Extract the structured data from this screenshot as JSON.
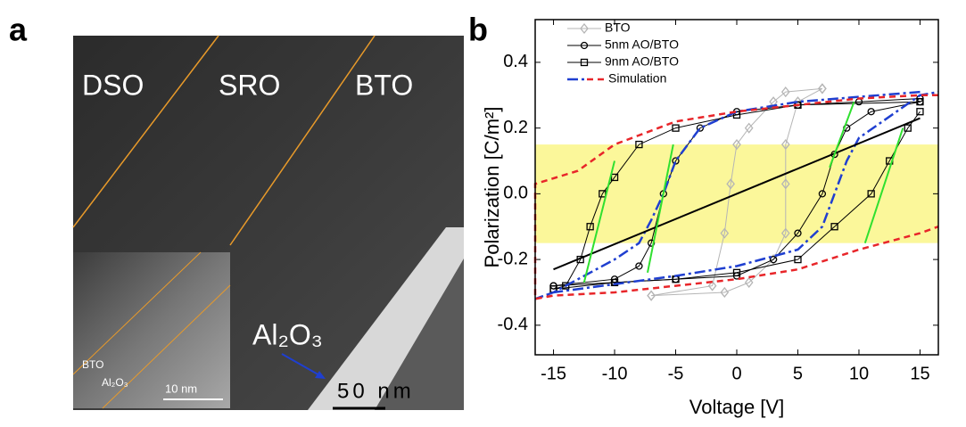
{
  "panel_a": {
    "label": "a",
    "regions": [
      "DSO",
      "SRO",
      "BTO"
    ],
    "layer": "Al₂O₃",
    "scale_bar": "50 nm",
    "inset": {
      "top_layer": "BTO",
      "bottom_layer": "Al₂O₃",
      "scale_bar": "10 nm"
    }
  },
  "chart_data": {
    "type": "line",
    "panel_label": "b",
    "xlabel": "Voltage [V]",
    "ylabel": "Polarization [C/m²]",
    "xlim": [
      -16.5,
      16.5
    ],
    "ylim": [
      -0.49,
      0.53
    ],
    "xticks": [
      -15,
      -10,
      -5,
      0,
      5,
      10,
      15
    ],
    "yticks": [
      {
        "value": -0.4,
        "label": "-0.4"
      },
      {
        "value": -0.2,
        "label": "-0.2"
      },
      {
        "value": 0,
        "label": "0.0"
      },
      {
        "value": 0.2,
        "label": "0.2"
      },
      {
        "value": 0.4,
        "label": "0.4"
      }
    ],
    "band": [
      -0.15,
      0.15
    ],
    "band_color": "#fbf79a",
    "series": [
      {
        "name": "BTO",
        "color": "#b5b5b5",
        "marker": "diamond",
        "x": [
          7,
          4,
          3,
          1,
          0,
          -0.5,
          -1,
          -2,
          -7,
          -7,
          -1,
          1,
          3,
          4,
          4,
          4,
          5,
          7
        ],
        "values": [
          0.32,
          0.31,
          0.28,
          0.2,
          0.15,
          0.03,
          -0.12,
          -0.28,
          -0.31,
          -0.31,
          -0.3,
          -0.27,
          -0.2,
          -0.12,
          0.03,
          0.15,
          0.28,
          0.32
        ]
      },
      {
        "name": "5nm AO/BTO",
        "color": "#000000",
        "marker": "circle",
        "x": [
          15,
          10,
          5,
          0,
          -3,
          -5,
          -6,
          -7,
          -8,
          -10,
          -15,
          -15,
          -10,
          -5,
          0,
          3,
          5,
          7,
          8,
          9,
          11,
          15
        ],
        "values": [
          0.29,
          0.28,
          0.27,
          0.25,
          0.2,
          0.1,
          0,
          -0.15,
          -0.22,
          -0.26,
          -0.28,
          -0.28,
          -0.27,
          -0.26,
          -0.25,
          -0.2,
          -0.12,
          0,
          0.12,
          0.2,
          0.25,
          0.28
        ]
      },
      {
        "name": "9nm AO/BTO",
        "color": "#000000",
        "marker": "square",
        "x": [
          15,
          5,
          0,
          -5,
          -8,
          -10,
          -11,
          -12,
          -12.8,
          -14,
          -15,
          -15,
          -10,
          -5,
          0,
          5,
          8,
          11,
          12.5,
          14,
          15
        ],
        "values": [
          0.28,
          0.27,
          0.24,
          0.2,
          0.15,
          0.05,
          0,
          -0.1,
          -0.2,
          -0.28,
          -0.29,
          -0.29,
          -0.27,
          -0.26,
          -0.24,
          -0.2,
          -0.1,
          0,
          0.1,
          0.2,
          0.25
        ]
      },
      {
        "name": "Simulation",
        "curves": [
          {
            "color": "#1f3fd0",
            "dash": "12 4 3 4",
            "x": [
              15,
              5,
              0,
              -3,
              -5,
              -6,
              -7,
              -8,
              -10,
              -15,
              -16.5,
              -15,
              -5,
              0,
              5,
              7,
              8,
              9,
              10,
              15,
              16.5
            ],
            "values": [
              0.31,
              0.28,
              0.25,
              0.2,
              0.1,
              0,
              -0.08,
              -0.15,
              -0.2,
              -0.3,
              -0.32,
              -0.3,
              -0.25,
              -0.22,
              -0.17,
              -0.1,
              0,
              0.1,
              0.17,
              0.3,
              0.31
            ]
          },
          {
            "color": "#e8262a",
            "dash": "7 5",
            "x": [
              16.5,
              15,
              10,
              5,
              0,
              -5,
              -10,
              -13,
              -16.5,
              -16.5,
              -15,
              -10,
              -5,
              0,
              5,
              10,
              15,
              16.5
            ],
            "values": [
              0.3,
              0.3,
              0.29,
              0.27,
              0.25,
              0.22,
              0.15,
              0.07,
              0.03,
              -0.32,
              -0.31,
              -0.3,
              -0.28,
              -0.26,
              -0.23,
              -0.17,
              -0.12,
              -0.1
            ]
          }
        ]
      }
    ],
    "fit_lines": [
      {
        "color": "#000000",
        "x": [
          -15,
          15
        ],
        "values": [
          -0.23,
          0.23
        ]
      },
      {
        "color": "#2fe02f",
        "x": [
          -12.5,
          -10
        ],
        "values": [
          -0.27,
          0.1
        ]
      },
      {
        "color": "#2fe02f",
        "x": [
          -7.3,
          -5.2
        ],
        "values": [
          -0.24,
          0.15
        ]
      },
      {
        "color": "#2fe02f",
        "x": [
          7.6,
          9.6
        ],
        "values": [
          0.08,
          0.28
        ]
      },
      {
        "color": "#2fe02f",
        "x": [
          10.5,
          13.6
        ],
        "values": [
          -0.15,
          0.2
        ]
      }
    ]
  }
}
